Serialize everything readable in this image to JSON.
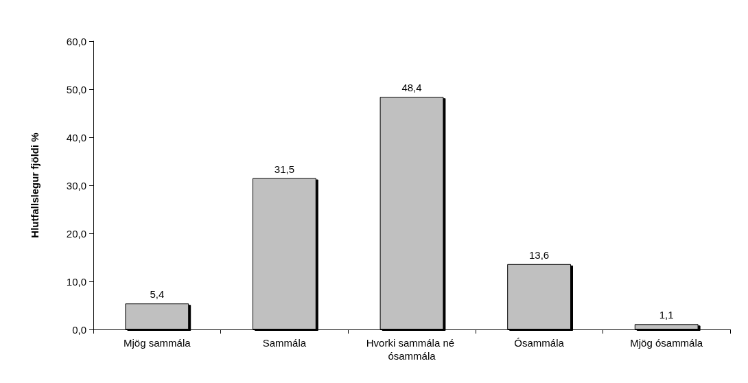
{
  "chart_data": {
    "type": "bar",
    "ylabel": "Hlutfallslegur fjöldi %",
    "categories": [
      "Mjög sammála",
      "Sammála",
      "Hvorki sammála né ósammála",
      "Ósammála",
      "Mjög ósammála"
    ],
    "values": [
      5.4,
      31.5,
      48.4,
      13.6,
      1.1
    ],
    "value_labels": [
      "5,4",
      "31,5",
      "48,4",
      "13,6",
      "1,1"
    ],
    "color": "#c0c0c0",
    "ylim": [
      0,
      60
    ],
    "yticks": [
      {
        "value": 0,
        "label": "0,0"
      },
      {
        "value": 10,
        "label": "10,0"
      },
      {
        "value": 20,
        "label": "20,0"
      },
      {
        "value": 30,
        "label": "30,0"
      },
      {
        "value": 40,
        "label": "40,0"
      },
      {
        "value": 50,
        "label": "50,0"
      },
      {
        "value": 60,
        "label": "60,0"
      }
    ],
    "grid": false
  }
}
